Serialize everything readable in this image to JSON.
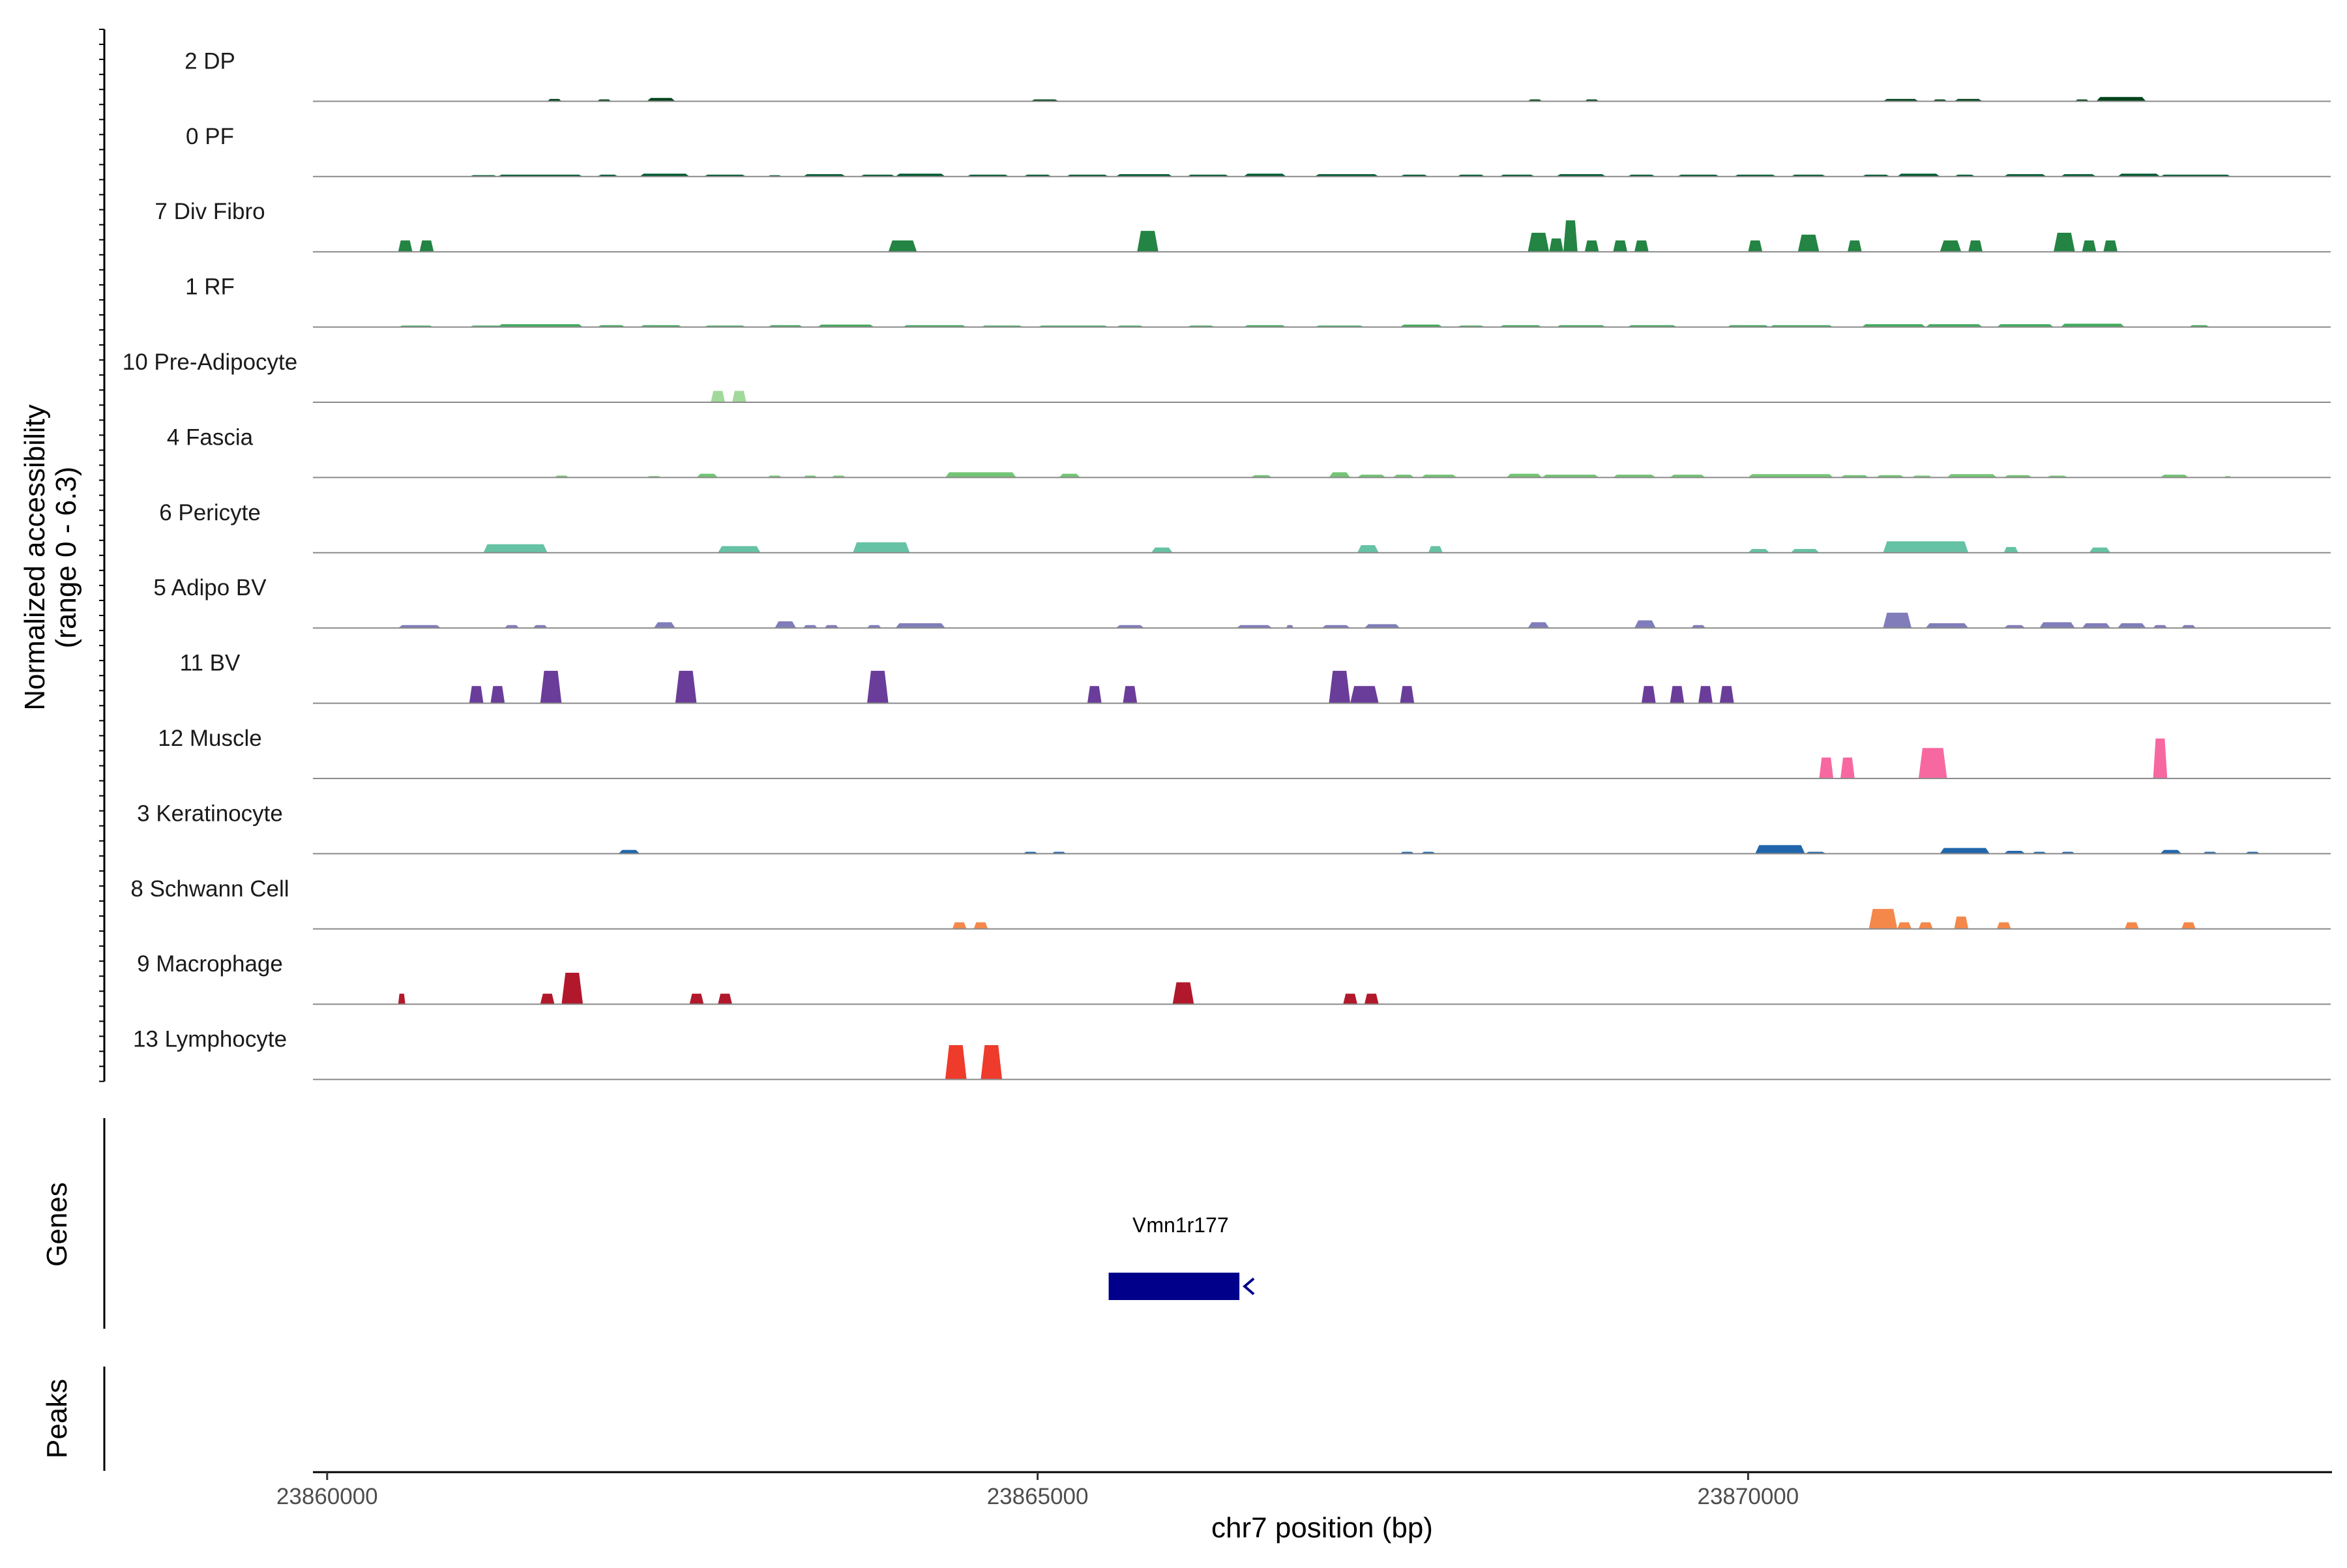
{
  "chart_data": {
    "type": "area",
    "ylabel_line1": "Normalized accessibility",
    "ylabel_line2": "(range 0 - 6.3)",
    "y_range": [
      0,
      6.3
    ],
    "xlabel": "chr7 position (bp)",
    "xlim": [
      23859900,
      23874100
    ],
    "x_ticks": [
      {
        "value": 23860000,
        "label": "23860000"
      },
      {
        "value": 23865000,
        "label": "23865000"
      },
      {
        "value": 23870000,
        "label": "23870000"
      }
    ],
    "genes_label": "Genes",
    "peaks_label": "Peaks",
    "genes": [
      {
        "name": "Vmn1r177",
        "start": 23865500,
        "end": 23866420,
        "strand": "-",
        "color": "#00008b"
      }
    ],
    "tracks": [
      {
        "name": "2 DP",
        "color": "#00441b",
        "peaks": [
          [
            23861550,
            23861650,
            0.25
          ],
          [
            23861900,
            23862000,
            0.2
          ],
          [
            23862250,
            23862450,
            0.35
          ],
          [
            23864950,
            23865150,
            0.2
          ],
          [
            23868450,
            23868550,
            0.2
          ],
          [
            23868850,
            23868950,
            0.2
          ],
          [
            23870950,
            23871200,
            0.25
          ],
          [
            23871300,
            23871400,
            0.2
          ],
          [
            23871450,
            23871650,
            0.25
          ],
          [
            23872300,
            23872400,
            0.2
          ],
          [
            23872450,
            23872800,
            0.45
          ]
        ]
      },
      {
        "name": "0 PF",
        "color": "#005a32",
        "peaks": [
          [
            23861000,
            23861200,
            0.15
          ],
          [
            23861200,
            23861800,
            0.2
          ],
          [
            23861900,
            23862050,
            0.2
          ],
          [
            23862200,
            23862550,
            0.3
          ],
          [
            23862650,
            23862950,
            0.2
          ],
          [
            23863100,
            23863200,
            0.1
          ],
          [
            23863350,
            23863650,
            0.25
          ],
          [
            23863750,
            23864000,
            0.2
          ],
          [
            23864000,
            23864350,
            0.3
          ],
          [
            23864500,
            23864800,
            0.2
          ],
          [
            23864900,
            23865100,
            0.2
          ],
          [
            23865200,
            23865500,
            0.2
          ],
          [
            23865550,
            23865950,
            0.25
          ],
          [
            23866050,
            23866350,
            0.2
          ],
          [
            23866450,
            23866750,
            0.3
          ],
          [
            23866950,
            23867400,
            0.25
          ],
          [
            23867550,
            23867750,
            0.2
          ],
          [
            23867950,
            23868150,
            0.2
          ],
          [
            23868250,
            23868500,
            0.2
          ],
          [
            23868650,
            23869000,
            0.25
          ],
          [
            23869150,
            23869350,
            0.2
          ],
          [
            23869500,
            23869800,
            0.2
          ],
          [
            23869900,
            23870200,
            0.2
          ],
          [
            23870300,
            23870550,
            0.2
          ],
          [
            23870800,
            23871000,
            0.2
          ],
          [
            23871050,
            23871350,
            0.3
          ],
          [
            23871450,
            23871600,
            0.2
          ],
          [
            23871800,
            23872100,
            0.25
          ],
          [
            23872200,
            23872450,
            0.25
          ],
          [
            23872600,
            23872900,
            0.3
          ],
          [
            23872900,
            23873400,
            0.2
          ]
        ]
      },
      {
        "name": "7 Div Fibro",
        "color": "#238443",
        "peaks": [
          [
            23860500,
            23860600,
            1.2
          ],
          [
            23860650,
            23860750,
            1.2
          ],
          [
            23863950,
            23864150,
            1.2
          ],
          [
            23865700,
            23865850,
            2.2
          ],
          [
            23868450,
            23868600,
            2.0
          ],
          [
            23868600,
            23868700,
            1.4
          ],
          [
            23868700,
            23868800,
            3.3
          ],
          [
            23868850,
            23868950,
            1.2
          ],
          [
            23869050,
            23869150,
            1.2
          ],
          [
            23869200,
            23869300,
            1.2
          ],
          [
            23870000,
            23870100,
            1.2
          ],
          [
            23870350,
            23870500,
            1.8
          ],
          [
            23870700,
            23870800,
            1.2
          ],
          [
            23871350,
            23871500,
            1.2
          ],
          [
            23871550,
            23871650,
            1.2
          ],
          [
            23872150,
            23872300,
            2.0
          ],
          [
            23872350,
            23872450,
            1.2
          ],
          [
            23872500,
            23872600,
            1.2
          ]
        ]
      },
      {
        "name": "1 RF",
        "color": "#41ab5d",
        "peaks": [
          [
            23860500,
            23860750,
            0.15
          ],
          [
            23861000,
            23861250,
            0.15
          ],
          [
            23861200,
            23861800,
            0.3
          ],
          [
            23861900,
            23862100,
            0.2
          ],
          [
            23862200,
            23862500,
            0.2
          ],
          [
            23862650,
            23862950,
            0.15
          ],
          [
            23863100,
            23863350,
            0.2
          ],
          [
            23863450,
            23863850,
            0.25
          ],
          [
            23864050,
            23864500,
            0.2
          ],
          [
            23864600,
            23864900,
            0.15
          ],
          [
            23865000,
            23865500,
            0.15
          ],
          [
            23865550,
            23865750,
            0.15
          ],
          [
            23866050,
            23866250,
            0.15
          ],
          [
            23866450,
            23866750,
            0.2
          ],
          [
            23866950,
            23867300,
            0.15
          ],
          [
            23867550,
            23867850,
            0.25
          ],
          [
            23867950,
            23868150,
            0.15
          ],
          [
            23868250,
            23868550,
            0.2
          ],
          [
            23868650,
            23869000,
            0.2
          ],
          [
            23869150,
            23869500,
            0.2
          ],
          [
            23869850,
            23870150,
            0.2
          ],
          [
            23870150,
            23870600,
            0.2
          ],
          [
            23870800,
            23871250,
            0.3
          ],
          [
            23871250,
            23871650,
            0.3
          ],
          [
            23871750,
            23872150,
            0.3
          ],
          [
            23872200,
            23872650,
            0.35
          ],
          [
            23873100,
            23873250,
            0.2
          ]
        ]
      },
      {
        "name": "10 Pre-Adipocyte",
        "color": "#a1d99b",
        "peaks": [
          [
            23862700,
            23862800,
            1.2
          ],
          [
            23862850,
            23862950,
            1.2
          ]
        ]
      },
      {
        "name": "4 Fascia",
        "color": "#74c476",
        "peaks": [
          [
            23861600,
            23861700,
            0.2
          ],
          [
            23862250,
            23862350,
            0.15
          ],
          [
            23862600,
            23862750,
            0.4
          ],
          [
            23863100,
            23863200,
            0.2
          ],
          [
            23863350,
            23863450,
            0.2
          ],
          [
            23863550,
            23863650,
            0.2
          ],
          [
            23864350,
            23864850,
            0.55
          ],
          [
            23865150,
            23865300,
            0.4
          ],
          [
            23866500,
            23866650,
            0.25
          ],
          [
            23867050,
            23867200,
            0.55
          ],
          [
            23867250,
            23867450,
            0.3
          ],
          [
            23867500,
            23867650,
            0.3
          ],
          [
            23867700,
            23867950,
            0.3
          ],
          [
            23868300,
            23868550,
            0.4
          ],
          [
            23868550,
            23868950,
            0.3
          ],
          [
            23869050,
            23869350,
            0.3
          ],
          [
            23869450,
            23869700,
            0.3
          ],
          [
            23870000,
            23870600,
            0.35
          ],
          [
            23870650,
            23870850,
            0.25
          ],
          [
            23870900,
            23871100,
            0.25
          ],
          [
            23871150,
            23871300,
            0.2
          ],
          [
            23871400,
            23871750,
            0.35
          ],
          [
            23871800,
            23872000,
            0.25
          ],
          [
            23872100,
            23872250,
            0.2
          ],
          [
            23872900,
            23873100,
            0.3
          ],
          [
            23873350,
            23873400,
            0.1
          ]
        ]
      },
      {
        "name": "6 Pericyte",
        "color": "#66c2a4",
        "peaks": [
          [
            23861100,
            23861550,
            0.9
          ],
          [
            23862750,
            23863050,
            0.7
          ],
          [
            23863700,
            23864100,
            1.1
          ],
          [
            23865800,
            23865950,
            0.55
          ],
          [
            23867250,
            23867400,
            0.8
          ],
          [
            23867750,
            23867850,
            0.7
          ],
          [
            23870000,
            23870150,
            0.4
          ],
          [
            23870300,
            23870500,
            0.4
          ],
          [
            23870950,
            23871550,
            1.2
          ],
          [
            23871800,
            23871900,
            0.6
          ],
          [
            23872400,
            23872550,
            0.55
          ]
        ]
      },
      {
        "name": "5 Adipo BV",
        "color": "#807dba",
        "peaks": [
          [
            23860500,
            23860800,
            0.3
          ],
          [
            23861250,
            23861350,
            0.3
          ],
          [
            23861450,
            23861550,
            0.3
          ],
          [
            23862300,
            23862450,
            0.6
          ],
          [
            23863150,
            23863300,
            0.7
          ],
          [
            23863350,
            23863450,
            0.3
          ],
          [
            23863500,
            23863600,
            0.3
          ],
          [
            23863800,
            23863900,
            0.3
          ],
          [
            23864000,
            23864350,
            0.5
          ],
          [
            23865550,
            23865750,
            0.3
          ],
          [
            23866400,
            23866650,
            0.3
          ],
          [
            23866750,
            23866800,
            0.3
          ],
          [
            23867000,
            23867200,
            0.3
          ],
          [
            23867300,
            23867550,
            0.4
          ],
          [
            23868450,
            23868600,
            0.6
          ],
          [
            23869200,
            23869350,
            0.8
          ],
          [
            23869600,
            23869700,
            0.3
          ],
          [
            23870950,
            23871150,
            1.6
          ],
          [
            23871250,
            23871550,
            0.5
          ],
          [
            23871800,
            23871950,
            0.3
          ],
          [
            23872050,
            23872300,
            0.6
          ],
          [
            23872350,
            23872550,
            0.5
          ],
          [
            23872600,
            23872800,
            0.5
          ],
          [
            23872850,
            23872950,
            0.3
          ],
          [
            23873050,
            23873150,
            0.3
          ]
        ]
      },
      {
        "name": "11 BV",
        "color": "#6a3d9a",
        "peaks": [
          [
            23861000,
            23861100,
            1.8
          ],
          [
            23861150,
            23861250,
            1.8
          ],
          [
            23861500,
            23861650,
            3.4
          ],
          [
            23862450,
            23862600,
            3.4
          ],
          [
            23863800,
            23863950,
            3.4
          ],
          [
            23865350,
            23865450,
            1.8
          ],
          [
            23865600,
            23865700,
            1.8
          ],
          [
            23867050,
            23867200,
            3.4
          ],
          [
            23867200,
            23867400,
            1.8
          ],
          [
            23867550,
            23867650,
            1.8
          ],
          [
            23869250,
            23869350,
            1.8
          ],
          [
            23869450,
            23869550,
            1.8
          ],
          [
            23869650,
            23869750,
            1.8
          ],
          [
            23869800,
            23869900,
            1.8
          ]
        ]
      },
      {
        "name": "12 Muscle",
        "color": "#f768a1",
        "peaks": [
          [
            23870500,
            23870600,
            2.2
          ],
          [
            23870650,
            23870750,
            2.2
          ],
          [
            23871200,
            23871400,
            3.2
          ],
          [
            23872850,
            23872950,
            4.2
          ]
        ]
      },
      {
        "name": "3 Keratinocyte",
        "color": "#2166ac",
        "peaks": [
          [
            23862050,
            23862200,
            0.4
          ],
          [
            23864900,
            23865000,
            0.2
          ],
          [
            23865100,
            23865200,
            0.2
          ],
          [
            23867550,
            23867650,
            0.2
          ],
          [
            23867700,
            23867800,
            0.2
          ],
          [
            23870050,
            23870400,
            0.9
          ],
          [
            23870400,
            23870550,
            0.2
          ],
          [
            23871350,
            23871700,
            0.6
          ],
          [
            23871800,
            23871950,
            0.3
          ],
          [
            23872000,
            23872100,
            0.2
          ],
          [
            23872200,
            23872300,
            0.2
          ],
          [
            23872900,
            23873050,
            0.4
          ],
          [
            23873200,
            23873300,
            0.2
          ],
          [
            23873500,
            23873600,
            0.2
          ]
        ]
      },
      {
        "name": "8 Schwann Cell",
        "color": "#f4884a",
        "peaks": [
          [
            23864400,
            23864500,
            0.7
          ],
          [
            23864550,
            23864650,
            0.7
          ],
          [
            23870850,
            23871050,
            2.1
          ],
          [
            23871050,
            23871150,
            0.7
          ],
          [
            23871200,
            23871300,
            0.7
          ],
          [
            23871450,
            23871550,
            1.3
          ],
          [
            23871750,
            23871850,
            0.7
          ],
          [
            23872650,
            23872750,
            0.7
          ],
          [
            23873050,
            23873150,
            0.7
          ]
        ]
      },
      {
        "name": "9 Macrophage",
        "color": "#b2182b",
        "peaks": [
          [
            23860500,
            23860550,
            1.1
          ],
          [
            23861500,
            23861600,
            1.1
          ],
          [
            23861650,
            23861800,
            3.3
          ],
          [
            23862550,
            23862650,
            1.1
          ],
          [
            23862750,
            23862850,
            1.1
          ],
          [
            23865950,
            23866100,
            2.3
          ],
          [
            23867150,
            23867250,
            1.1
          ],
          [
            23867300,
            23867400,
            1.1
          ]
        ]
      },
      {
        "name": "13 Lymphocyte",
        "color": "#ef3b2c",
        "peaks": [
          [
            23864350,
            23864500,
            3.6
          ],
          [
            23864600,
            23864750,
            3.6
          ]
        ]
      }
    ]
  }
}
